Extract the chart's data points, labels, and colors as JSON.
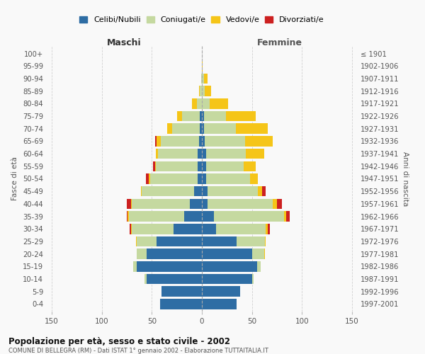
{
  "age_groups": [
    "0-4",
    "5-9",
    "10-14",
    "15-19",
    "20-24",
    "25-29",
    "30-34",
    "35-39",
    "40-44",
    "45-49",
    "50-54",
    "55-59",
    "60-64",
    "65-69",
    "70-74",
    "75-79",
    "80-84",
    "85-89",
    "90-94",
    "95-99",
    "100+"
  ],
  "birth_years": [
    "1997-2001",
    "1992-1996",
    "1987-1991",
    "1982-1986",
    "1977-1981",
    "1972-1976",
    "1967-1971",
    "1962-1966",
    "1957-1961",
    "1952-1956",
    "1947-1951",
    "1942-1946",
    "1937-1941",
    "1932-1936",
    "1927-1931",
    "1922-1926",
    "1917-1921",
    "1912-1916",
    "1907-1911",
    "1902-1906",
    "≤ 1901"
  ],
  "male": {
    "celibi": [
      42,
      40,
      55,
      65,
      55,
      45,
      28,
      18,
      12,
      8,
      4,
      4,
      4,
      3,
      2,
      2,
      0,
      0,
      0,
      0,
      0
    ],
    "coniugati": [
      0,
      0,
      2,
      4,
      10,
      20,
      42,
      55,
      58,
      52,
      48,
      42,
      40,
      38,
      28,
      18,
      5,
      2,
      1,
      0,
      0
    ],
    "vedovi": [
      0,
      0,
      0,
      0,
      0,
      1,
      1,
      1,
      1,
      1,
      1,
      1,
      2,
      4,
      5,
      5,
      5,
      1,
      0,
      0,
      0
    ],
    "divorziati": [
      0,
      0,
      0,
      0,
      0,
      0,
      1,
      1,
      4,
      0,
      3,
      2,
      0,
      2,
      0,
      0,
      0,
      0,
      0,
      0,
      0
    ]
  },
  "female": {
    "nubili": [
      35,
      38,
      50,
      55,
      50,
      35,
      14,
      12,
      6,
      6,
      4,
      4,
      4,
      3,
      2,
      2,
      0,
      0,
      0,
      0,
      0
    ],
    "coniugate": [
      0,
      0,
      2,
      4,
      12,
      28,
      50,
      70,
      65,
      50,
      44,
      38,
      40,
      40,
      32,
      22,
      8,
      3,
      2,
      0,
      0
    ],
    "vedove": [
      0,
      0,
      0,
      0,
      1,
      1,
      2,
      2,
      4,
      4,
      8,
      12,
      18,
      28,
      32,
      30,
      18,
      6,
      4,
      1,
      0
    ],
    "divorziate": [
      0,
      0,
      0,
      0,
      0,
      0,
      2,
      4,
      5,
      4,
      0,
      0,
      0,
      0,
      0,
      0,
      0,
      0,
      0,
      0,
      0
    ]
  },
  "colors": {
    "celibi": "#2e6da4",
    "coniugati": "#c5d9a0",
    "vedovi": "#f5c518",
    "divorziati": "#cc2020"
  },
  "xlim": 155,
  "title": "Popolazione per età, sesso e stato civile - 2002",
  "subtitle": "COMUNE DI BELLEGRA (RM) - Dati ISTAT 1° gennaio 2002 - Elaborazione TUTTAITALIA.IT",
  "ylabel_left": "Fasce di età",
  "ylabel_right": "Anni di nascita",
  "xlabel_left": "Maschi",
  "xlabel_right": "Femmine",
  "bg_color": "#f9f9f9",
  "grid_color": "#cccccc"
}
